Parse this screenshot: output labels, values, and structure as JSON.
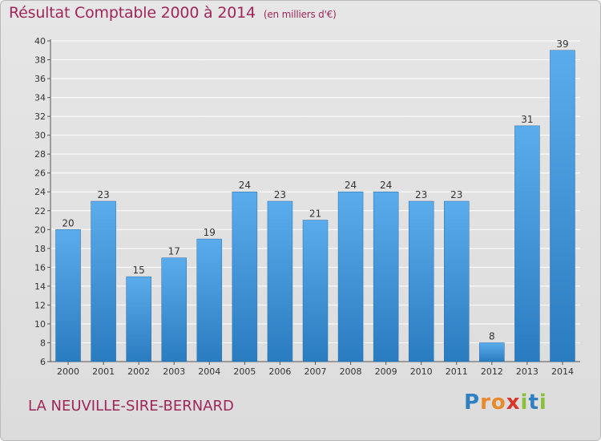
{
  "title": "Résultat Comptable 2000 à 2014",
  "subtitle": "(en milliers d'€)",
  "commune": "LA NEUVILLE-SIRE-BERNARD",
  "logo": {
    "text": "Proxiti",
    "letters": [
      {
        "char": "P",
        "color": "#2f7fc1"
      },
      {
        "char": "r",
        "color": "#e8892a"
      },
      {
        "char": "o",
        "color": "#e8892a"
      },
      {
        "char": "x",
        "color": "#d8362b"
      },
      {
        "char": "i",
        "color": "#8cbf3a"
      },
      {
        "char": "t",
        "color": "#2f7fc1"
      },
      {
        "char": "i",
        "color": "#8cbf3a"
      }
    ]
  },
  "colors": {
    "title": "#a0265a",
    "bar_light": "#5aacec",
    "bar_dark": "#2a7cc0",
    "grid": "#ffffff",
    "axis_text": "#333333"
  },
  "chart_data": {
    "type": "bar",
    "categories": [
      "2000",
      "2001",
      "2002",
      "2003",
      "2004",
      "2005",
      "2006",
      "2007",
      "2008",
      "2009",
      "2010",
      "2011",
      "2012",
      "2013",
      "2014"
    ],
    "values": [
      20,
      23,
      15,
      17,
      19,
      24,
      23,
      21,
      24,
      24,
      23,
      23,
      8,
      31,
      39
    ],
    "ylim": [
      6,
      40
    ],
    "yticks": [
      6,
      8,
      10,
      12,
      14,
      16,
      18,
      20,
      22,
      24,
      26,
      28,
      30,
      32,
      34,
      36,
      38,
      40
    ],
    "grid": true,
    "data_labels": true,
    "legend": "none"
  }
}
